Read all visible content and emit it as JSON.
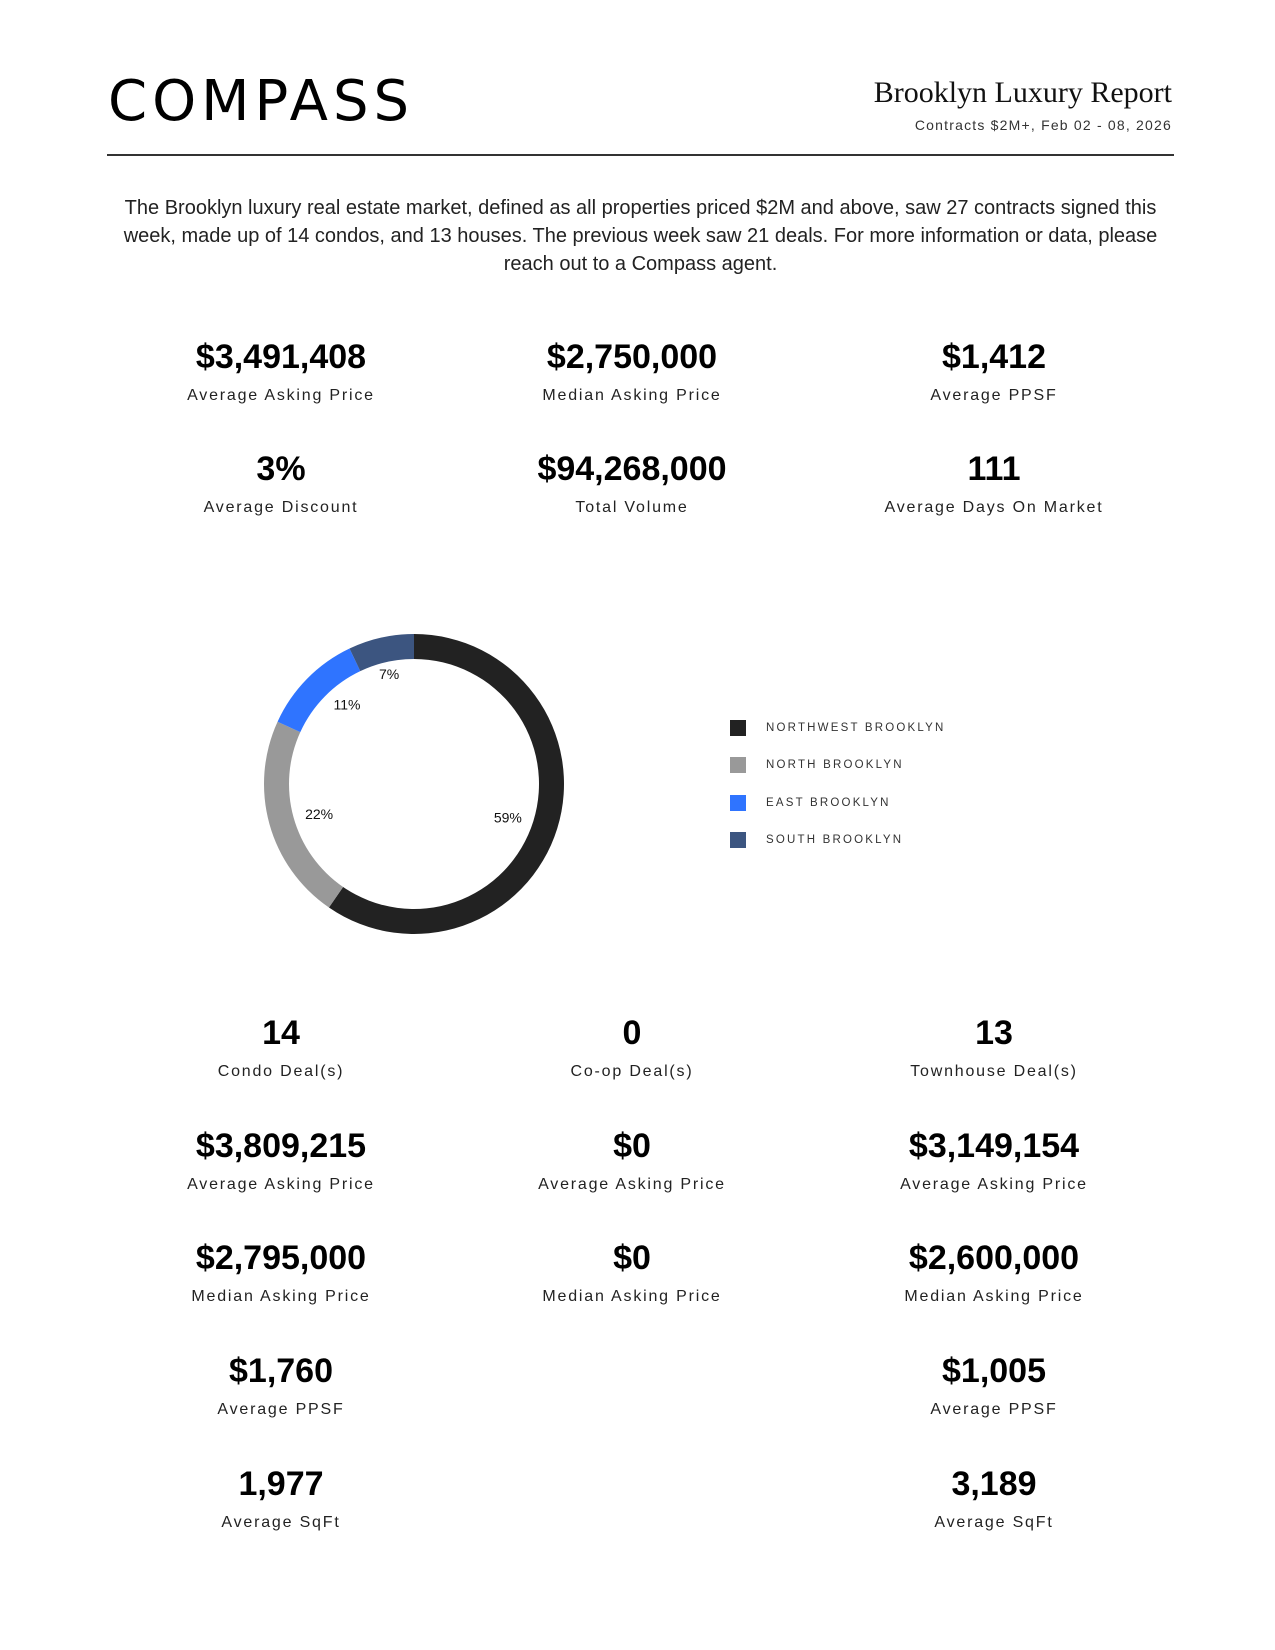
{
  "header": {
    "logo": "COMPASS",
    "title": "Brooklyn Luxury Report",
    "subtitle": "Contracts $2M+, Feb 02 - 08, 2026"
  },
  "intro": "The Brooklyn luxury real estate market, defined as all properties priced $2M and above, saw 27 contracts signed this week, made up of 14 condos, and 13 houses. The previous week saw 21 deals. For more information or data, please reach out to a Compass agent.",
  "summary": [
    {
      "value": "$3,491,408",
      "label": "Average Asking Price"
    },
    {
      "value": "$2,750,000",
      "label": "Median Asking Price"
    },
    {
      "value": "$1,412",
      "label": "Average PPSF"
    },
    {
      "value": "3%",
      "label": "Average Discount"
    },
    {
      "value": "$94,268,000",
      "label": "Total Volume"
    },
    {
      "value": "111",
      "label": "Average Days On Market"
    }
  ],
  "chart_data": {
    "type": "pie",
    "variant": "donut",
    "categories": [
      "NORTHWEST BROOKLYN",
      "NORTH BROOKLYN",
      "EAST BROOKLYN",
      "SOUTH BROOKLYN"
    ],
    "values": [
      59,
      22,
      11,
      7
    ],
    "data_labels": [
      "59%",
      "22%",
      "11%",
      "7%"
    ],
    "colors": [
      "#222222",
      "#999999",
      "#2f74ff",
      "#3c5580"
    ],
    "legend_position": "right"
  },
  "condo": [
    {
      "value": "14",
      "label": "Condo Deal(s)"
    },
    {
      "value": "$3,809,215",
      "label": "Average Asking Price"
    },
    {
      "value": "$2,795,000",
      "label": "Median Asking Price"
    },
    {
      "value": "$1,760",
      "label": "Average PPSF"
    },
    {
      "value": "1,977",
      "label": "Average SqFt"
    }
  ],
  "coop": [
    {
      "value": "0",
      "label": "Co-op Deal(s)"
    },
    {
      "value": "$0",
      "label": "Average Asking Price"
    },
    {
      "value": "$0",
      "label": "Median Asking Price"
    }
  ],
  "townhouse": [
    {
      "value": "13",
      "label": "Townhouse Deal(s)"
    },
    {
      "value": "$3,149,154",
      "label": "Average Asking Price"
    },
    {
      "value": "$2,600,000",
      "label": "Median Asking Price"
    },
    {
      "value": "$1,005",
      "label": "Average PPSF"
    },
    {
      "value": "3,189",
      "label": "Average SqFt"
    }
  ]
}
